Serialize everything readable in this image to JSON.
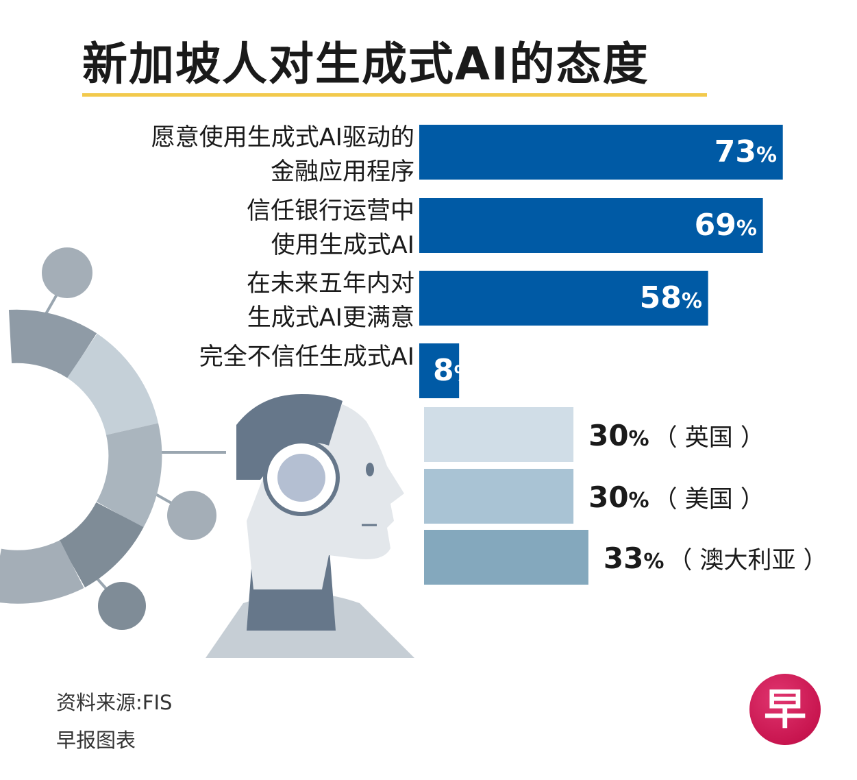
{
  "title": "新加坡人对生成式AI的态度",
  "chart_data": {
    "type": "bar",
    "orientation": "horizontal",
    "unit": "%",
    "categories": [
      "愿意使用生成式AI驱动的\n金融应用程序",
      "信任银行运营中\n使用生成式AI",
      "在未来五年内对\n生成式AI更满意",
      "完全不信任生成式AI"
    ],
    "values": [
      73,
      69,
      58,
      8
    ],
    "comparison": {
      "values": [
        30,
        30,
        33
      ],
      "countries": [
        "（ 英国 ）",
        "（ 美国 ）",
        "（ 澳大利亚 ）"
      ]
    },
    "ylim": [
      0,
      100
    ],
    "grid": false,
    "legend": "none"
  },
  "colors": {
    "main_bar": "#005aa5",
    "compare_bars": [
      "#d0dde7",
      "#a9c3d4",
      "#84a8bd"
    ],
    "title_rule": "#f2c94c",
    "illustration": "#9aa6b0"
  },
  "source": "资料来源:FIS",
  "credit": "早报图表",
  "logo": {
    "icon": "zaobao-logo",
    "text": "早"
  }
}
